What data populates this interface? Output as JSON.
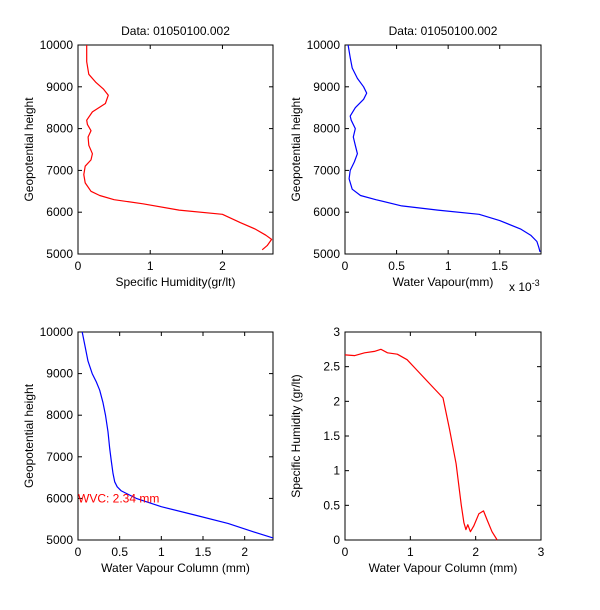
{
  "chart_data": [
    {
      "type": "line",
      "title": "Data: 01050100.002",
      "xlabel": "Specific Humidity(gr/lt)",
      "ylabel": "Geopotential height",
      "xlim": [
        0,
        2.7
      ],
      "ylim": [
        5000,
        10000
      ],
      "xticks": [
        0,
        1,
        2
      ],
      "yticks": [
        5000,
        6000,
        7000,
        8000,
        9000,
        10000
      ],
      "xtick_labels": [
        "0",
        "1",
        "2"
      ],
      "ytick_labels": [
        "5000",
        "6000",
        "7000",
        "8000",
        "9000",
        "10000"
      ],
      "x_multiplier": "",
      "annotation": "",
      "grid": false,
      "series": [
        {
          "color": "#ff0000",
          "x": [
            2.55,
            2.62,
            2.68,
            2.6,
            2.45,
            2.25,
            2.0,
            1.4,
            0.9,
            0.5,
            0.3,
            0.18,
            0.1,
            0.08,
            0.1,
            0.18,
            0.2,
            0.15,
            0.14,
            0.18,
            0.13,
            0.12,
            0.2,
            0.38,
            0.42,
            0.35,
            0.25,
            0.15,
            0.12,
            0.12
          ],
          "y": [
            5100,
            5200,
            5350,
            5450,
            5600,
            5750,
            5950,
            6050,
            6200,
            6300,
            6400,
            6500,
            6700,
            6900,
            7100,
            7250,
            7400,
            7600,
            7800,
            7950,
            8100,
            8200,
            8400,
            8600,
            8800,
            8950,
            9100,
            9300,
            9600,
            10000
          ]
        }
      ]
    },
    {
      "type": "line",
      "title": "Data: 01050100.002",
      "xlabel": "Water Vapour(mm)",
      "ylabel": "Geopotential height",
      "xlim": [
        0,
        1.9
      ],
      "ylim": [
        5000,
        10000
      ],
      "xticks": [
        0,
        0.5,
        1,
        1.5
      ],
      "yticks": [
        5000,
        6000,
        7000,
        8000,
        9000,
        10000
      ],
      "xtick_labels": [
        "0",
        "0.5",
        "1",
        "1.5"
      ],
      "ytick_labels": [
        "5000",
        "6000",
        "7000",
        "8000",
        "9000",
        "10000"
      ],
      "x_multiplier": "x 10",
      "x_multiplier_exp": "-3",
      "annotation": "",
      "grid": false,
      "series": [
        {
          "color": "#0000ff",
          "x": [
            1.89,
            1.88,
            1.86,
            1.8,
            1.7,
            1.5,
            1.3,
            0.9,
            0.55,
            0.3,
            0.15,
            0.07,
            0.04,
            0.05,
            0.09,
            0.12,
            0.1,
            0.08,
            0.1,
            0.06,
            0.05,
            0.1,
            0.18,
            0.21,
            0.18,
            0.12,
            0.07,
            0.05,
            0.03
          ],
          "y": [
            5050,
            5150,
            5300,
            5450,
            5600,
            5800,
            5950,
            6050,
            6150,
            6300,
            6400,
            6550,
            6800,
            7000,
            7200,
            7400,
            7600,
            7800,
            8000,
            8200,
            8300,
            8500,
            8700,
            8850,
            9000,
            9200,
            9450,
            9700,
            10000
          ]
        }
      ]
    },
    {
      "type": "line",
      "title": "",
      "xlabel": "Water Vapour Column (mm)",
      "ylabel": "Geopotential height",
      "xlim": [
        0,
        2.34
      ],
      "ylim": [
        5000,
        10000
      ],
      "xticks": [
        0,
        0.5,
        1,
        1.5,
        2
      ],
      "yticks": [
        5000,
        6000,
        7000,
        8000,
        9000,
        10000
      ],
      "xtick_labels": [
        "0",
        "0.5",
        "1",
        "1.5",
        "2"
      ],
      "ytick_labels": [
        "5000",
        "6000",
        "7000",
        "8000",
        "9000",
        "10000"
      ],
      "x_multiplier": "",
      "annotation": "WVC: 2.34 mm",
      "annotation_pos": [
        0,
        6000
      ],
      "grid": false,
      "series": [
        {
          "color": "#0000ff",
          "x": [
            0.05,
            0.08,
            0.12,
            0.17,
            0.22,
            0.26,
            0.3,
            0.33,
            0.36,
            0.38,
            0.4,
            0.42,
            0.44,
            0.47,
            0.52,
            0.7,
            1.0,
            1.4,
            1.8,
            2.1,
            2.34
          ],
          "y": [
            10000,
            9700,
            9300,
            9000,
            8800,
            8600,
            8300,
            8000,
            7600,
            7200,
            6900,
            6600,
            6400,
            6280,
            6180,
            6000,
            5800,
            5600,
            5400,
            5200,
            5050
          ]
        }
      ]
    },
    {
      "type": "line",
      "title": "",
      "xlabel": "Water Vapour Column (mm)",
      "ylabel": "Specific Humidity (gr/lt)",
      "xlim": [
        0,
        3
      ],
      "ylim": [
        0,
        3
      ],
      "xticks": [
        0,
        1,
        2,
        3
      ],
      "yticks": [
        0,
        0.5,
        1,
        1.5,
        2,
        2.5,
        3
      ],
      "xtick_labels": [
        "0",
        "1",
        "2",
        "3"
      ],
      "ytick_labels": [
        "0",
        "0.5",
        "1",
        "1.5",
        "2",
        "2.5",
        "3"
      ],
      "x_multiplier": "",
      "annotation": "",
      "grid": false,
      "series": [
        {
          "color": "#ff0000",
          "x": [
            0,
            0.15,
            0.3,
            0.45,
            0.55,
            0.65,
            0.8,
            0.95,
            1.1,
            1.3,
            1.5,
            1.6,
            1.7,
            1.78,
            1.82,
            1.85,
            1.88,
            1.92,
            1.97,
            2.05,
            2.12,
            2.18,
            2.25,
            2.33
          ],
          "y": [
            2.67,
            2.66,
            2.7,
            2.72,
            2.75,
            2.7,
            2.68,
            2.6,
            2.45,
            2.25,
            2.05,
            1.6,
            1.1,
            0.5,
            0.25,
            0.15,
            0.22,
            0.12,
            0.2,
            0.38,
            0.42,
            0.28,
            0.12,
            0.0
          ]
        }
      ]
    }
  ]
}
